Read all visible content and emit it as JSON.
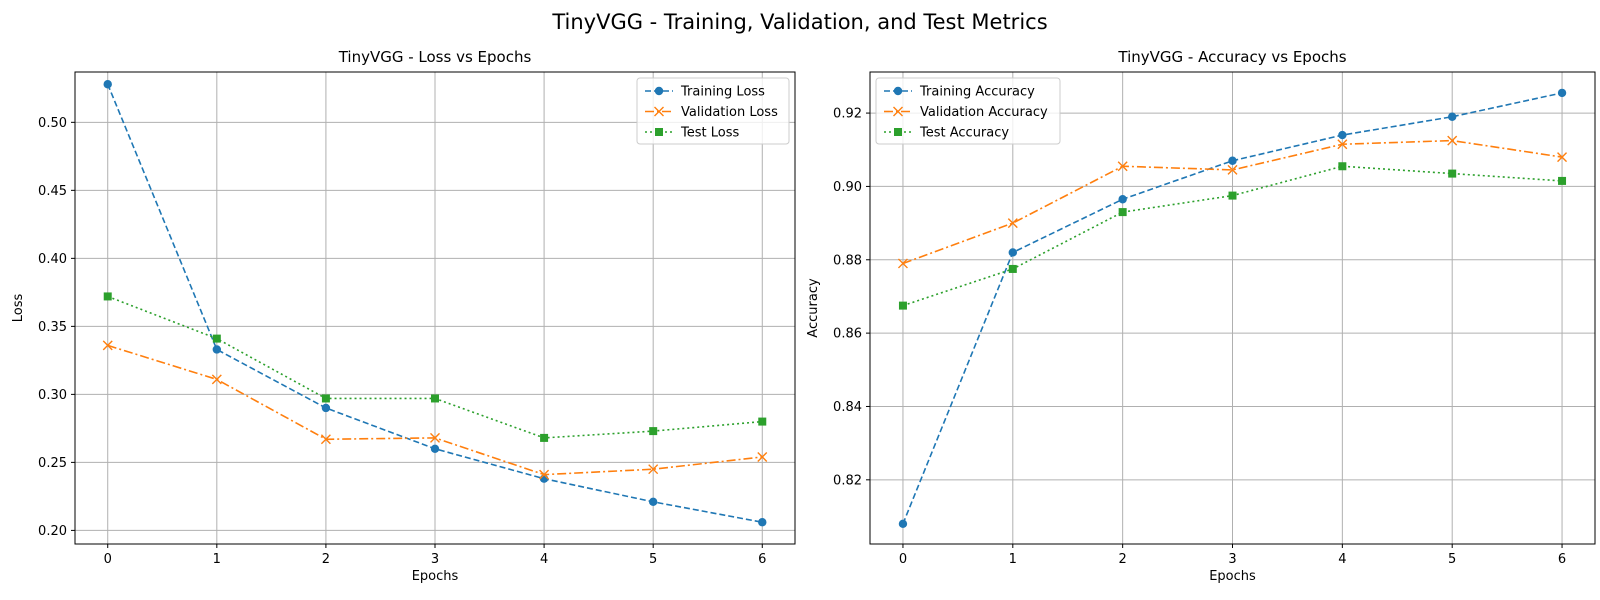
{
  "figure": {
    "suptitle": "TinyVGG - Training, Validation, and Test Metrics"
  },
  "colors": {
    "blue": "#1f77b4",
    "orange": "#ff7f0e",
    "green": "#2ca02c",
    "grid": "#b0b0b0"
  },
  "chart_data": [
    {
      "type": "line",
      "title": "TinyVGG - Loss vs Epochs",
      "xlabel": "Epochs",
      "ylabel": "Loss",
      "x": [
        0,
        1,
        2,
        3,
        4,
        5,
        6
      ],
      "xlim": [
        -0.3,
        6.3
      ],
      "ylim": [
        0.19,
        0.537
      ],
      "xticks": [
        0,
        1,
        2,
        3,
        4,
        5,
        6
      ],
      "yticks": [
        "0.20",
        "0.25",
        "0.30",
        "0.35",
        "0.40",
        "0.45",
        "0.50"
      ],
      "grid": true,
      "legend_position": "upper right",
      "series": [
        {
          "name": "Training Loss",
          "color": "#1f77b4",
          "linestyle": "dashed",
          "marker": "circle",
          "values": [
            0.528,
            0.333,
            0.29,
            0.26,
            0.238,
            0.221,
            0.206
          ]
        },
        {
          "name": "Validation Loss",
          "color": "#ff7f0e",
          "linestyle": "dashdot",
          "marker": "x",
          "values": [
            0.336,
            0.311,
            0.267,
            0.268,
            0.241,
            0.245,
            0.254
          ]
        },
        {
          "name": "Test Loss",
          "color": "#2ca02c",
          "linestyle": "dotted",
          "marker": "square",
          "values": [
            0.372,
            0.341,
            0.297,
            0.297,
            0.268,
            0.273,
            0.28
          ]
        }
      ]
    },
    {
      "type": "line",
      "title": "TinyVGG - Accuracy vs Epochs",
      "xlabel": "Epochs",
      "ylabel": "Accuracy",
      "x": [
        0,
        1,
        2,
        3,
        4,
        5,
        6
      ],
      "xlim": [
        -0.3,
        6.3
      ],
      "ylim": [
        0.8025,
        0.9312
      ],
      "xticks": [
        0,
        1,
        2,
        3,
        4,
        5,
        6
      ],
      "yticks": [
        "0.82",
        "0.84",
        "0.86",
        "0.88",
        "0.90",
        "0.92"
      ],
      "grid": true,
      "legend_position": "upper left",
      "series": [
        {
          "name": "Training Accuracy",
          "color": "#1f77b4",
          "linestyle": "dashed",
          "marker": "circle",
          "values": [
            0.808,
            0.882,
            0.8965,
            0.907,
            0.914,
            0.919,
            0.9255
          ]
        },
        {
          "name": "Validation Accuracy",
          "color": "#ff7f0e",
          "linestyle": "dashdot",
          "marker": "x",
          "values": [
            0.879,
            0.89,
            0.9055,
            0.9045,
            0.9115,
            0.9125,
            0.908
          ]
        },
        {
          "name": "Test Accuracy",
          "color": "#2ca02c",
          "linestyle": "dotted",
          "marker": "square",
          "values": [
            0.8675,
            0.8775,
            0.893,
            0.8975,
            0.9055,
            0.9035,
            0.9015
          ]
        }
      ]
    }
  ]
}
